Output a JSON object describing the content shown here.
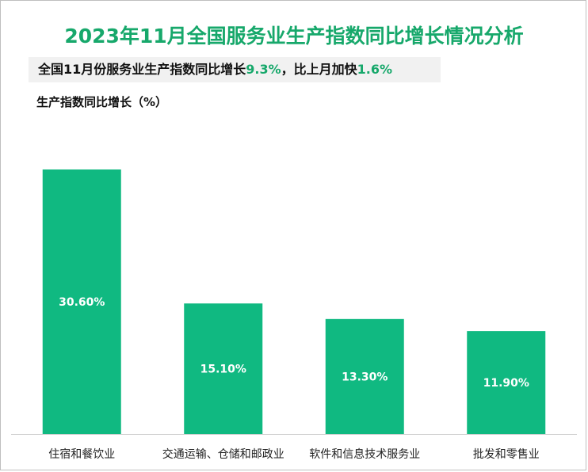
{
  "title": "2023年11月全国服务业生产指数同比增长情况分析",
  "subtitle": {
    "prefix": "全国11月份服务业生产指数同比增长",
    "value1": "9.3%",
    "middle": "，比上月加快",
    "value2": "1.6%"
  },
  "ylabel": "生产指数同比增长（%）",
  "colors": {
    "accent": "#17a86b",
    "bar": "#10b981"
  },
  "chart_data": {
    "type": "bar",
    "categories": [
      "住宿和餐饮业",
      "交通运输、仓储和邮政业",
      "软件和信息技术服务业",
      "批发和零售业"
    ],
    "values": [
      30.6,
      15.1,
      13.3,
      11.9
    ],
    "data_labels": [
      "30.60%",
      "15.10%",
      "13.30%",
      "11.90%"
    ],
    "title": "2023年11月全国服务业生产指数同比增长情况分析",
    "ylabel": "生产指数同比增长（%）",
    "ylim": [
      0,
      30.6
    ],
    "grid": false,
    "legend": "none"
  }
}
